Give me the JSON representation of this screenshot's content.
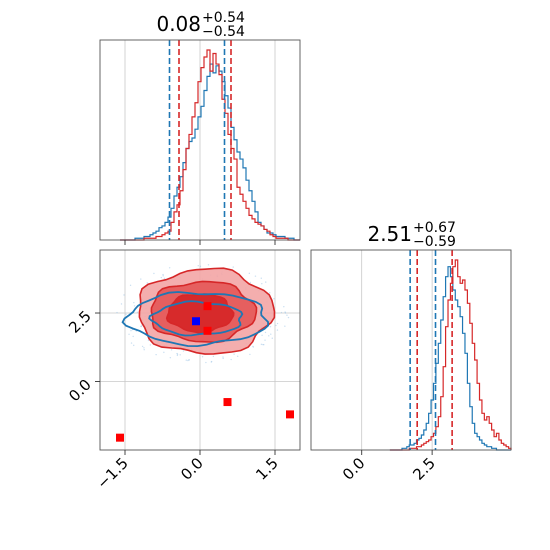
{
  "chart_data": {
    "type": "corner",
    "colors": {
      "blue": "#1f77b4",
      "red": "#d62728",
      "grid": "#c8c8c8",
      "frame": "#555555"
    },
    "panels": {
      "x_hist": {
        "title_value": "0.08",
        "title_upper": "+0.54",
        "title_lower": "−0.54",
        "xlim": [
          -2.0,
          2.0
        ],
        "grid_x": [
          -1.5,
          0.0,
          1.5
        ],
        "hist_range": [
          -1.6,
          2.0
        ],
        "blue_hist": [
          0,
          0,
          0,
          0,
          0,
          1,
          1,
          1,
          2,
          2,
          3,
          4,
          5,
          7,
          8,
          10,
          13,
          18,
          25,
          30,
          36,
          44,
          52,
          56,
          58,
          63,
          70,
          76,
          85,
          93,
          100,
          95,
          99,
          96,
          90,
          82,
          75,
          64,
          57,
          50,
          46,
          41,
          34,
          28,
          22,
          16,
          10,
          8,
          6,
          4,
          4,
          3,
          2,
          2,
          2,
          1,
          1,
          1,
          0,
          0
        ],
        "red_hist": [
          0,
          0,
          0,
          0,
          0,
          0,
          0,
          0,
          1,
          1,
          1,
          1,
          2,
          2,
          3,
          4,
          5,
          10,
          16,
          20,
          28,
          40,
          52,
          60,
          70,
          78,
          90,
          98,
          104,
          108,
          96,
          106,
          100,
          94,
          80,
          72,
          60,
          52,
          46,
          30,
          26,
          22,
          18,
          14,
          12,
          10,
          9,
          8,
          6,
          5,
          3,
          2,
          1,
          1,
          1,
          1,
          0,
          0,
          0,
          0
        ],
        "blue_quantiles": [
          -0.61,
          0.49
        ],
        "red_quantiles": [
          -0.42,
          0.62
        ]
      },
      "y_hist": {
        "title_value": "2.51",
        "title_upper": "+0.67",
        "title_lower": "−0.59",
        "xlim": [
          -1.8,
          5.3
        ],
        "grid_x": [
          0.0,
          2.5
        ],
        "ticks": [
          "0.0",
          "2.5"
        ],
        "hist_range": [
          1.0,
          5.3
        ],
        "blue_hist": [
          0,
          0,
          0,
          0,
          0,
          1,
          1,
          2,
          3,
          3,
          4,
          6,
          7,
          9,
          12,
          16,
          22,
          30,
          40,
          52,
          64,
          78,
          92,
          104,
          110,
          104,
          96,
          90,
          86,
          80,
          70,
          58,
          40,
          26,
          16,
          10,
          8,
          6,
          4,
          3,
          2,
          2,
          1,
          1,
          0,
          0,
          0,
          0,
          0,
          0
        ],
        "red_hist": [
          0,
          0,
          0,
          0,
          0,
          0,
          0,
          0,
          1,
          1,
          1,
          2,
          2,
          3,
          4,
          5,
          6,
          8,
          10,
          14,
          20,
          32,
          50,
          74,
          90,
          100,
          110,
          114,
          104,
          100,
          102,
          96,
          88,
          76,
          64,
          54,
          40,
          30,
          22,
          18,
          20,
          16,
          12,
          8,
          10,
          6,
          4,
          3,
          2,
          1
        ],
        "blue_quantiles": [
          1.72,
          2.62
        ],
        "red_quantiles": [
          1.97,
          3.21
        ]
      },
      "joint": {
        "xlim": [
          -2.0,
          2.0
        ],
        "ylim": [
          -2.5,
          4.8
        ],
        "grid_x": [
          -1.5,
          0.0,
          1.5
        ],
        "grid_y": [
          0.0,
          2.5
        ],
        "x_ticks": [
          "−1.5",
          "0.0",
          "1.5"
        ],
        "y_ticks": [
          "0.0",
          "2.5"
        ],
        "red_markers": [
          {
            "x": 0.15,
            "y": 2.75
          },
          {
            "x": 0.15,
            "y": 1.85
          },
          {
            "x": 0.55,
            "y": -0.75
          },
          {
            "x": 1.8,
            "y": -1.2
          },
          {
            "x": -1.6,
            "y": -2.05
          }
        ],
        "blue_markers": [
          {
            "x": -0.08,
            "y": 2.2
          }
        ],
        "red_contours": [
          {
            "cx": 0.1,
            "cy": 2.55,
            "rx": 1.35,
            "ry": 1.55,
            "fill": "#f3a5a5",
            "opacity": 0.9
          },
          {
            "cx": 0.05,
            "cy": 2.55,
            "rx": 1.05,
            "ry": 1.1,
            "fill": "#e45656",
            "opacity": 0.9
          },
          {
            "cx": 0.0,
            "cy": 2.5,
            "rx": 0.65,
            "ry": 0.7,
            "fill": "#d62728",
            "opacity": 0.95
          }
        ],
        "blue_contours": [
          {
            "cx": -0.05,
            "cy": 2.3,
            "rx": 1.4,
            "ry": 0.95
          },
          {
            "cx": -0.05,
            "cy": 2.3,
            "rx": 0.9,
            "ry": 0.6
          }
        ]
      }
    }
  }
}
